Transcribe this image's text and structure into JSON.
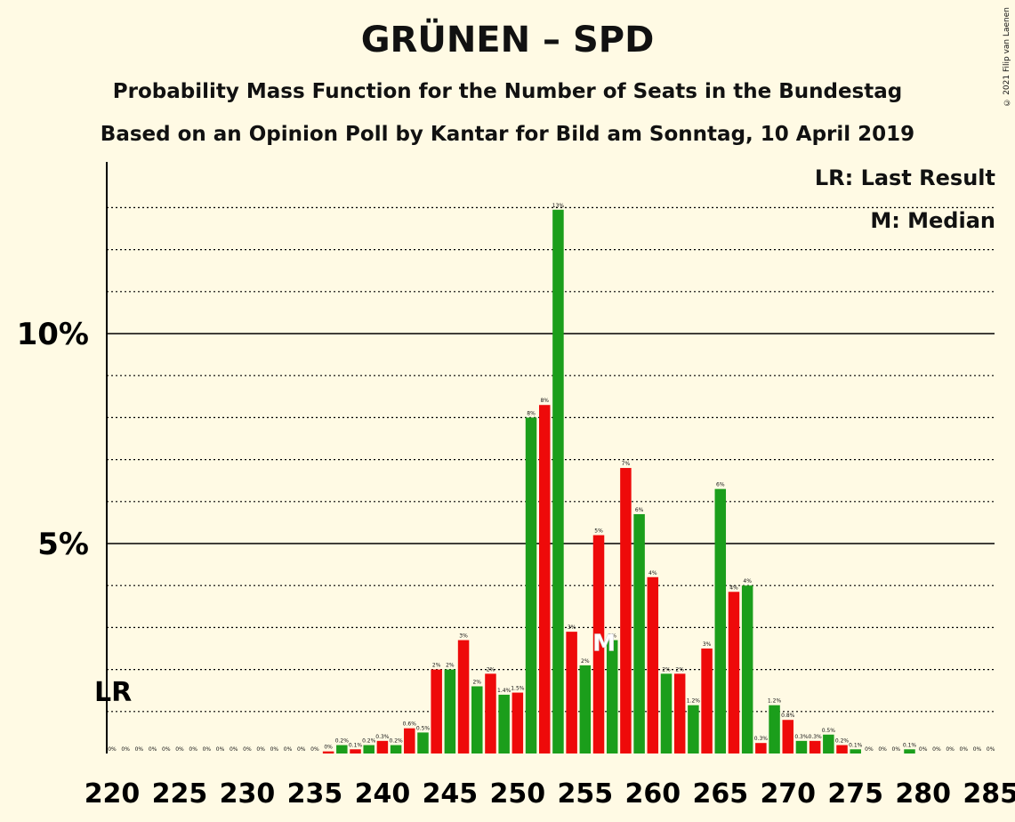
{
  "title": "GRÜNEN – SPD",
  "subtitle1": "Probability Mass Function for the Number of Seats in the Bundestag",
  "subtitle2": "Based on an Opinion Poll by Kantar for Bild am Sonntag, 10 April 2019",
  "copyright": "© 2021 Filip van Laenen",
  "legend": {
    "lr": "LR: Last Result",
    "median": "M: Median"
  },
  "colors": {
    "green": "#1B9E1B",
    "red": "#EE0A0A",
    "background": "#FFFAE4"
  },
  "chart_data": {
    "type": "bar",
    "x_start": 220,
    "x_end": 285,
    "x_ticks": [
      220,
      225,
      230,
      235,
      240,
      245,
      250,
      255,
      260,
      265,
      270,
      275,
      280,
      285
    ],
    "y_ticks": [
      {
        "value": 5,
        "label": "5%"
      },
      {
        "value": 10,
        "label": "10%"
      }
    ],
    "ylim": [
      0,
      14.1
    ],
    "last_result": 220,
    "last_result_label": "LR",
    "median": 256,
    "median_label": "M",
    "seats": [
      220,
      221,
      222,
      223,
      224,
      225,
      226,
      227,
      228,
      229,
      230,
      231,
      232,
      233,
      234,
      235,
      236,
      237,
      238,
      239,
      240,
      241,
      242,
      243,
      244,
      245,
      246,
      247,
      248,
      249,
      250,
      251,
      252,
      253,
      254,
      255,
      256,
      257,
      258,
      259,
      260,
      261,
      262,
      263,
      264,
      265,
      266,
      267,
      268,
      269,
      270,
      271,
      272,
      273,
      274,
      275,
      276,
      277,
      278,
      279,
      280,
      281,
      282,
      283,
      284,
      285
    ],
    "values": [
      0,
      0,
      0,
      0,
      0,
      0,
      0,
      0,
      0,
      0,
      0,
      0,
      0,
      0,
      0,
      0,
      0.05,
      0.2,
      0.1,
      0.2,
      0.3,
      0.2,
      0.6,
      0.5,
      2.0,
      2.0,
      2.7,
      1.6,
      1.9,
      1.4,
      1.45,
      8.0,
      8.3,
      12.95,
      2.9,
      2.1,
      5.2,
      2.7,
      6.8,
      5.7,
      4.2,
      1.9,
      1.9,
      1.15,
      2.5,
      6.3,
      3.85,
      4.0,
      0.25,
      1.15,
      0.8,
      0.3,
      0.3,
      0.45,
      0.2,
      0.1,
      0,
      0,
      0,
      0.1,
      0,
      0,
      0,
      0,
      0,
      0
    ],
    "labels": [
      "0%",
      "0%",
      "0%",
      "0%",
      "0%",
      "0%",
      "0%",
      "0%",
      "0%",
      "0%",
      "0%",
      "0%",
      "0%",
      "0%",
      "0%",
      "0%",
      "0%",
      "0.2%",
      "0.1%",
      "0.2%",
      "0.3%",
      "0.2%",
      "0.6%",
      "0.5%",
      "2%",
      "2%",
      "3%",
      "2%",
      "2%",
      "1.4%",
      "1.5%",
      "8%",
      "8%",
      "13%",
      "3%",
      "2%",
      "5%",
      "3%",
      "7%",
      "6%",
      "4%",
      "2%",
      "2%",
      "1.2%",
      "3%",
      "6%",
      "4%",
      "4%",
      "0.3%",
      "1.2%",
      "0.8%",
      "0.3%",
      "0.3%",
      "0.5%",
      "0.2%",
      "0.1%",
      "0%",
      "0%",
      "0%",
      "0.1%",
      "0%",
      "0%",
      "0%",
      "0%",
      "0%",
      "0%"
    ]
  }
}
